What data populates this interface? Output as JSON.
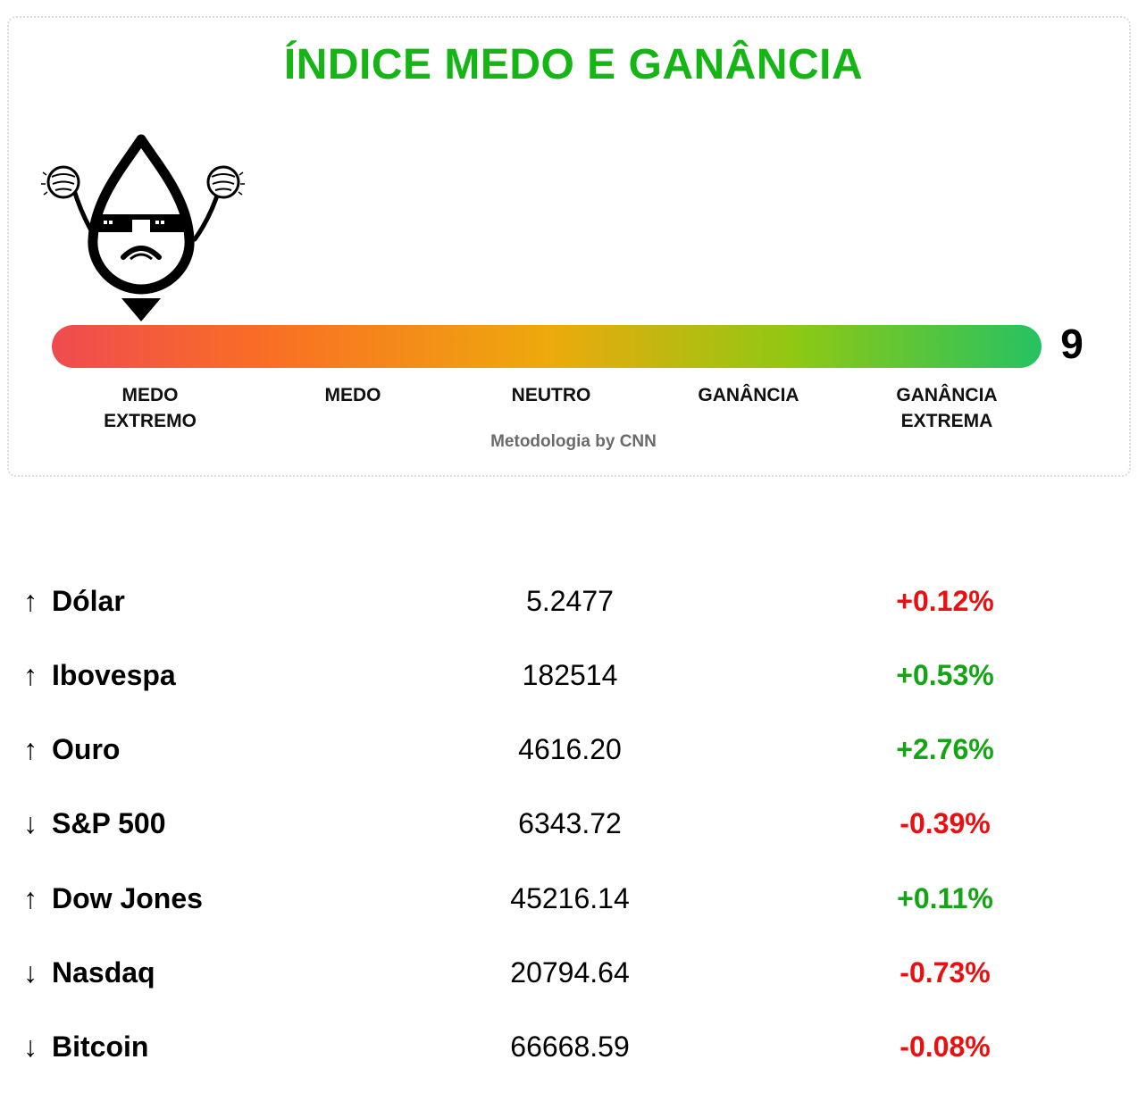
{
  "widget": {
    "title": "ÍNDICE MEDO E GANÂNCIA",
    "score": "9",
    "score_value": 9,
    "scale": {
      "min": 0,
      "max": 100
    },
    "levels": [
      {
        "line1": "MEDO",
        "line2": "EXTREMO"
      },
      {
        "line1": "MEDO",
        "line2": ""
      },
      {
        "line1": "NEUTRO",
        "line2": ""
      },
      {
        "line1": "GANÂNCIA",
        "line2": ""
      },
      {
        "line1": "GANÂNCIA",
        "line2": "EXTREMA"
      }
    ],
    "credit": "Metodologia by CNN",
    "mascot_icon": "fear-drop-mascot-icon",
    "bar_colors": [
      "#ef4b50",
      "#f96f24",
      "#eea90c",
      "#8fc813",
      "#26c262"
    ]
  },
  "markets": [
    {
      "arrow": "↑",
      "name": "Dólar",
      "price": "5.2477",
      "change": "+0.12%",
      "change_color": "#e81010"
    },
    {
      "arrow": "↑",
      "name": "Ibovespa",
      "price": "182514",
      "change": "+0.53%",
      "change_color": "#14a514"
    },
    {
      "arrow": "↑",
      "name": "Ouro",
      "price": "4616.20",
      "change": "+2.76%",
      "change_color": "#14a514"
    },
    {
      "arrow": "↓",
      "name": "S&P 500",
      "price": "6343.72",
      "change": "-0.39%",
      "change_color": "#e81010"
    },
    {
      "arrow": "↑",
      "name": "Dow Jones",
      "price": "45216.14",
      "change": "+0.11%",
      "change_color": "#14a514"
    },
    {
      "arrow": "↓",
      "name": "Nasdaq",
      "price": "20794.64",
      "change": "-0.73%",
      "change_color": "#e81010"
    },
    {
      "arrow": "↓",
      "name": "Bitcoin",
      "price": "66668.59",
      "change": "-0.08%",
      "change_color": "#e81010"
    }
  ]
}
